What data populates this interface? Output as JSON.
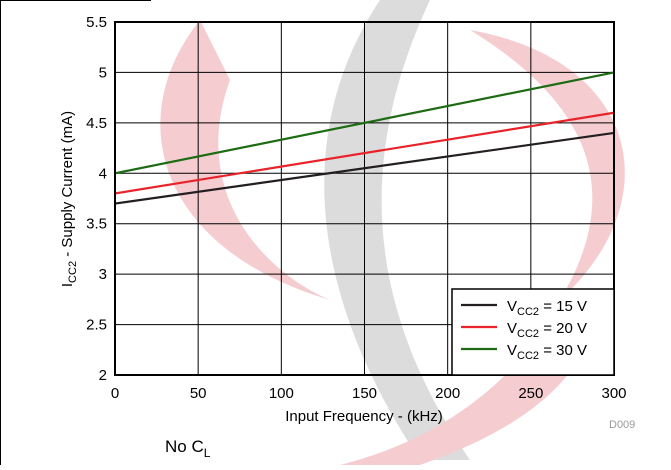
{
  "chart_data": {
    "type": "line",
    "x": [
      0,
      300
    ],
    "series": [
      {
        "name": "VCC2 = 15 V",
        "label_base": "V",
        "label_sub": "CC2",
        "label_rest": " = 15 V",
        "values": [
          3.7,
          4.4
        ],
        "color": "#231f20"
      },
      {
        "name": "VCC2 = 20 V",
        "label_base": "V",
        "label_sub": "CC2",
        "label_rest": " = 20 V",
        "values": [
          3.8,
          4.6
        ],
        "color": "#e8232a"
      },
      {
        "name": "VCC2 = 30 V",
        "label_base": "V",
        "label_sub": "CC2",
        "label_rest": " = 30 V",
        "values": [
          4.0,
          5.0
        ],
        "color": "#1d6b12"
      }
    ],
    "xlabel": "Input Frequency - (kHz)",
    "ylabel": {
      "base": "I",
      "sub": "CC2",
      "rest": " - Supply Current (mA)"
    },
    "xlim": [
      0,
      300
    ],
    "ylim": [
      2,
      5.5
    ],
    "x_ticks": [
      "0",
      "50",
      "100",
      "150",
      "200",
      "250",
      "300"
    ],
    "y_ticks": [
      "2",
      "2.5",
      "3",
      "3.5",
      "4",
      "4.5",
      "5",
      "5.5"
    ],
    "grid": true,
    "legend_position": "bottom-right",
    "code": "D009",
    "note": {
      "base": "No C",
      "sub": "L"
    }
  }
}
